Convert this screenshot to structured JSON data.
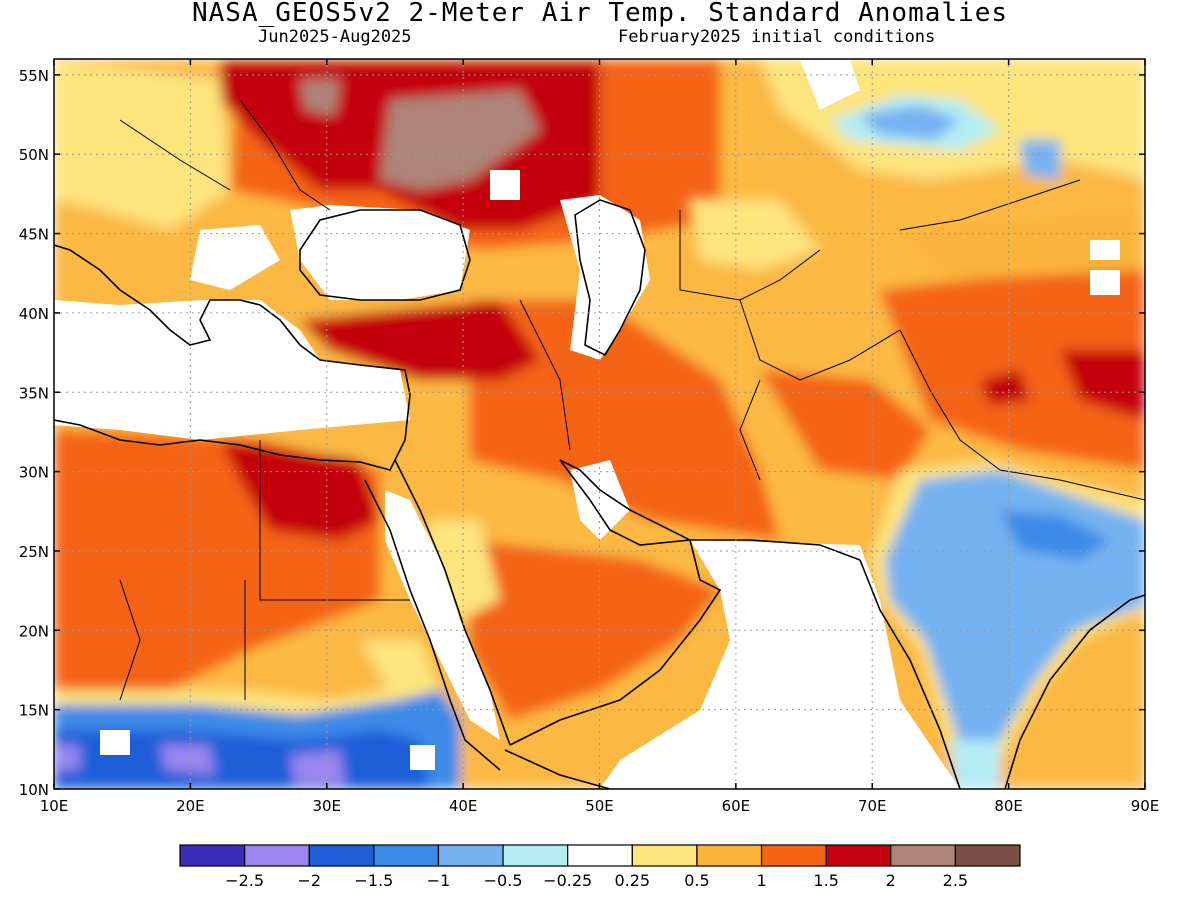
{
  "title": "NASA_GEOS5v2 2-Meter Air Temp. Standard Anomalies",
  "subtitle_left": "Jun2025-Aug2025",
  "subtitle_right": "February2025 initial conditions",
  "map": {
    "lon_range": [
      10,
      90
    ],
    "lat_range": [
      10,
      56
    ],
    "lon_ticks": [
      10,
      20,
      30,
      40,
      50,
      60,
      70,
      80,
      90
    ],
    "lon_tick_labels": [
      "10E",
      "20E",
      "30E",
      "40E",
      "50E",
      "60E",
      "70E",
      "80E",
      "90E"
    ],
    "lat_ticks": [
      10,
      15,
      20,
      25,
      30,
      35,
      40,
      45,
      50,
      55
    ],
    "lat_tick_labels": [
      "10N",
      "15N",
      "20N",
      "25N",
      "30N",
      "35N",
      "40N",
      "45N",
      "50N",
      "55N"
    ],
    "grid": "dotted"
  },
  "colorbar": {
    "colors": [
      "#3a2cb8",
      "#9a86f0",
      "#1e5fd8",
      "#3c8ae8",
      "#74b2f2",
      "#b4ecf4",
      "#ffffff",
      "#fde47c",
      "#fbb43a",
      "#f46414",
      "#c4020e",
      "#ae8478",
      "#7a5046"
    ],
    "labels": [
      "-2.5",
      "-2",
      "-1.5",
      "-1",
      "-0.5",
      "-0.25",
      "0.25",
      "0.5",
      "1",
      "1.5",
      "2",
      "2.5"
    ]
  }
}
